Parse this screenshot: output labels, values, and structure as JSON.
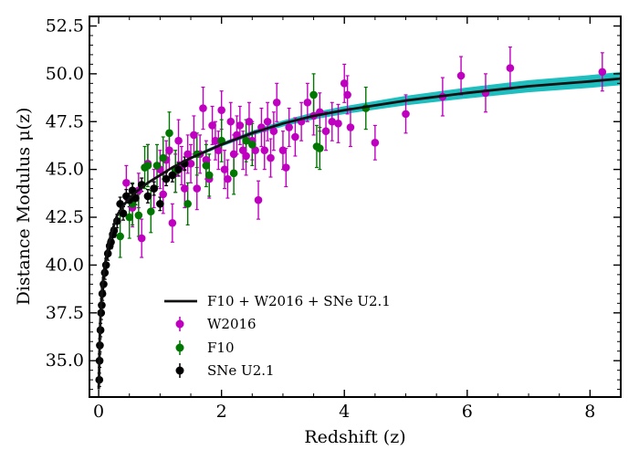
{
  "chart_data": {
    "type": "scatter",
    "xlabel": "Redshift (z)",
    "ylabel": "Distance Modulus μ(z)",
    "xlim": [
      -0.15,
      8.5
    ],
    "ylim": [
      33.1,
      53.0
    ],
    "x_ticks": [
      0,
      2,
      4,
      6,
      8
    ],
    "x_tick_labels": [
      "0",
      "2",
      "4",
      "6",
      "8"
    ],
    "y_ticks": [
      35.0,
      37.5,
      40.0,
      42.5,
      45.0,
      47.5,
      50.0,
      52.5
    ],
    "y_tick_labels": [
      "35.0",
      "37.5",
      "40.0",
      "42.5",
      "45.0",
      "47.5",
      "50.0",
      "52.5"
    ],
    "grid": false,
    "legend_position": "lower-center",
    "model": {
      "name": "F10 + W2016 + SNe U2.1",
      "color": "#111111",
      "band_color": "#1fbfbf",
      "x": [
        0.0,
        0.005,
        0.01,
        0.02,
        0.04,
        0.06,
        0.08,
        0.1,
        0.15,
        0.2,
        0.3,
        0.4,
        0.5,
        0.6,
        0.8,
        1.0,
        1.2,
        1.5,
        2.0,
        2.5,
        3.0,
        3.5,
        4.0,
        5.0,
        6.0,
        7.0,
        8.0,
        8.5
      ],
      "y": [
        33.5,
        33.9,
        35.0,
        36.5,
        38.0,
        38.9,
        39.5,
        40.0,
        40.9,
        41.6,
        42.6,
        43.1,
        43.5,
        43.8,
        44.3,
        44.7,
        45.1,
        45.6,
        46.3,
        46.9,
        47.4,
        47.8,
        48.1,
        48.6,
        49.0,
        49.35,
        49.6,
        49.75
      ],
      "band_halfwidth": [
        0,
        0,
        0,
        0,
        0,
        0,
        0,
        0,
        0,
        0,
        0,
        0,
        0,
        0,
        0,
        0,
        0.02,
        0.04,
        0.06,
        0.09,
        0.12,
        0.15,
        0.17,
        0.21,
        0.25,
        0.28,
        0.3,
        0.31
      ]
    },
    "series": [
      {
        "name": "W2016",
        "color": "#c000c0",
        "x": [
          0.45,
          0.55,
          0.65,
          0.7,
          0.8,
          0.9,
          1.0,
          1.05,
          1.1,
          1.15,
          1.2,
          1.25,
          1.3,
          1.35,
          1.4,
          1.45,
          1.5,
          1.55,
          1.6,
          1.65,
          1.7,
          1.75,
          1.8,
          1.85,
          1.9,
          1.95,
          2.0,
          2.05,
          2.1,
          2.15,
          2.2,
          2.25,
          2.3,
          2.35,
          2.4,
          2.45,
          2.5,
          2.55,
          2.6,
          2.65,
          2.7,
          2.75,
          2.8,
          2.85,
          2.9,
          3.0,
          3.05,
          3.1,
          3.2,
          3.3,
          3.4,
          3.5,
          3.6,
          3.7,
          3.8,
          3.9,
          4.0,
          4.05,
          4.1,
          4.5,
          5.0,
          5.6,
          5.9,
          6.3,
          6.7,
          8.2
        ],
        "y": [
          44.3,
          43.0,
          43.9,
          41.4,
          45.3,
          44.0,
          45.0,
          43.7,
          45.5,
          46.0,
          42.2,
          44.8,
          46.5,
          45.2,
          44.0,
          45.8,
          45.3,
          46.8,
          44.0,
          45.8,
          48.2,
          45.5,
          44.5,
          47.3,
          46.5,
          46.0,
          48.1,
          45.0,
          44.5,
          47.5,
          45.8,
          46.8,
          47.3,
          46.0,
          45.7,
          47.5,
          46.5,
          46.0,
          43.4,
          47.2,
          46.0,
          47.5,
          45.6,
          47.0,
          48.5,
          46.0,
          45.1,
          47.2,
          46.7,
          47.5,
          48.5,
          47.8,
          48.0,
          47.0,
          47.5,
          47.4,
          49.5,
          48.9,
          47.2,
          46.4,
          47.9,
          48.8,
          49.9,
          49.0,
          50.3,
          50.1
        ],
        "yerr": [
          0.9,
          1.0,
          0.9,
          1.0,
          1.0,
          1.0,
          1.0,
          1.0,
          1.0,
          1.0,
          1.0,
          1.0,
          1.1,
          1.0,
          1.0,
          1.0,
          1.0,
          1.0,
          1.1,
          1.0,
          1.1,
          1.0,
          1.0,
          1.0,
          1.0,
          1.0,
          1.0,
          1.0,
          1.0,
          1.0,
          1.0,
          1.0,
          1.0,
          1.0,
          1.0,
          1.0,
          1.0,
          1.0,
          1.0,
          1.0,
          1.0,
          1.0,
          1.0,
          1.0,
          1.0,
          1.0,
          1.0,
          1.0,
          1.0,
          1.0,
          1.0,
          1.0,
          1.0,
          1.0,
          1.0,
          1.0,
          1.0,
          1.0,
          1.0,
          0.9,
          1.0,
          1.0,
          1.0,
          1.0,
          1.1,
          1.0
        ]
      },
      {
        "name": "F10",
        "color": "#007700",
        "x": [
          0.35,
          0.5,
          0.55,
          0.65,
          0.75,
          0.8,
          0.85,
          0.95,
          1.05,
          1.15,
          1.25,
          1.45,
          1.6,
          1.75,
          1.8,
          2.0,
          2.2,
          2.4,
          2.5,
          3.5,
          3.55,
          3.6,
          4.35
        ],
        "y": [
          41.5,
          42.5,
          43.2,
          42.6,
          45.1,
          45.2,
          42.8,
          45.2,
          45.6,
          46.9,
          44.9,
          43.2,
          45.8,
          45.2,
          44.7,
          46.5,
          44.8,
          46.5,
          46.3,
          48.9,
          46.2,
          46.1,
          48.2
        ]
      },
      {
        "name": "SNe U2.1",
        "color": "#000000",
        "x": [
          0.01,
          0.015,
          0.02,
          0.03,
          0.04,
          0.05,
          0.06,
          0.08,
          0.1,
          0.12,
          0.15,
          0.18,
          0.2,
          0.23,
          0.25,
          0.3,
          0.35,
          0.4,
          0.45,
          0.5,
          0.55,
          0.6,
          0.7,
          0.8,
          0.9,
          1.0,
          1.1,
          1.2,
          1.3,
          1.4
        ],
        "y": [
          34.0,
          35.0,
          35.8,
          36.6,
          37.5,
          37.9,
          38.5,
          39.0,
          39.6,
          40.0,
          40.6,
          41.0,
          41.2,
          41.6,
          41.8,
          42.3,
          43.2,
          42.7,
          43.6,
          43.4,
          43.9,
          43.5,
          44.2,
          43.6,
          44.0,
          43.2,
          44.5,
          44.7,
          45.0,
          45.3
        ]
      }
    ]
  }
}
